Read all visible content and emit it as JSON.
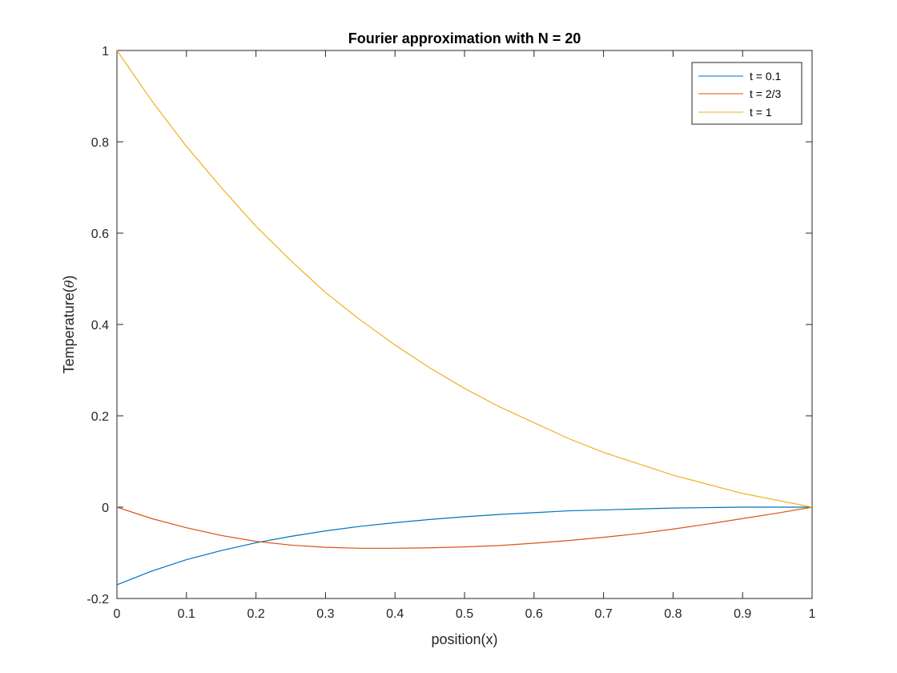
{
  "chart_data": {
    "type": "line",
    "title": "Fourier approximation with N = 20",
    "xlabel": "position(x)",
    "ylabel_text": "Temperature(",
    "ylabel_symbol": "θ",
    "ylabel_close": ")",
    "xlim": [
      0,
      1
    ],
    "ylim": [
      -0.2,
      1
    ],
    "xticks": [
      0,
      0.1,
      0.2,
      0.3,
      0.4,
      0.5,
      0.6,
      0.7,
      0.8,
      0.9,
      1
    ],
    "xtick_labels": [
      "0",
      "0.1",
      "0.2",
      "0.3",
      "0.4",
      "0.5",
      "0.6",
      "0.7",
      "0.8",
      "0.9",
      "1"
    ],
    "yticks": [
      -0.2,
      0,
      0.2,
      0.4,
      0.6,
      0.8,
      1
    ],
    "ytick_labels": [
      "-0.2",
      "0",
      "0.2",
      "0.4",
      "0.6",
      "0.8",
      "1"
    ],
    "grid": false,
    "legend_position": "top-right",
    "x": [
      0,
      0.05,
      0.1,
      0.15,
      0.2,
      0.25,
      0.3,
      0.35,
      0.4,
      0.45,
      0.5,
      0.55,
      0.6,
      0.65,
      0.7,
      0.75,
      0.8,
      0.85,
      0.9,
      0.95,
      1
    ],
    "series": [
      {
        "name": "t = 0.1",
        "color": "#0072BD",
        "values": [
          -0.17,
          -0.14,
          -0.115,
          -0.095,
          -0.078,
          -0.064,
          -0.052,
          -0.042,
          -0.034,
          -0.027,
          -0.021,
          -0.016,
          -0.012,
          -0.008,
          -0.006,
          -0.004,
          -0.002,
          -0.001,
          0.0,
          0.0,
          0.0
        ]
      },
      {
        "name": "t = 2/3",
        "color": "#D95319",
        "values": [
          0.0,
          -0.025,
          -0.045,
          -0.062,
          -0.075,
          -0.083,
          -0.088,
          -0.09,
          -0.09,
          -0.089,
          -0.087,
          -0.084,
          -0.079,
          -0.073,
          -0.066,
          -0.058,
          -0.048,
          -0.037,
          -0.025,
          -0.013,
          0.0
        ]
      },
      {
        "name": "t = 1",
        "color": "#EDB120",
        "values": [
          1.0,
          0.89,
          0.79,
          0.7,
          0.615,
          0.54,
          0.47,
          0.41,
          0.355,
          0.305,
          0.26,
          0.22,
          0.185,
          0.15,
          0.12,
          0.095,
          0.07,
          0.05,
          0.03,
          0.015,
          0.0
        ]
      }
    ]
  }
}
